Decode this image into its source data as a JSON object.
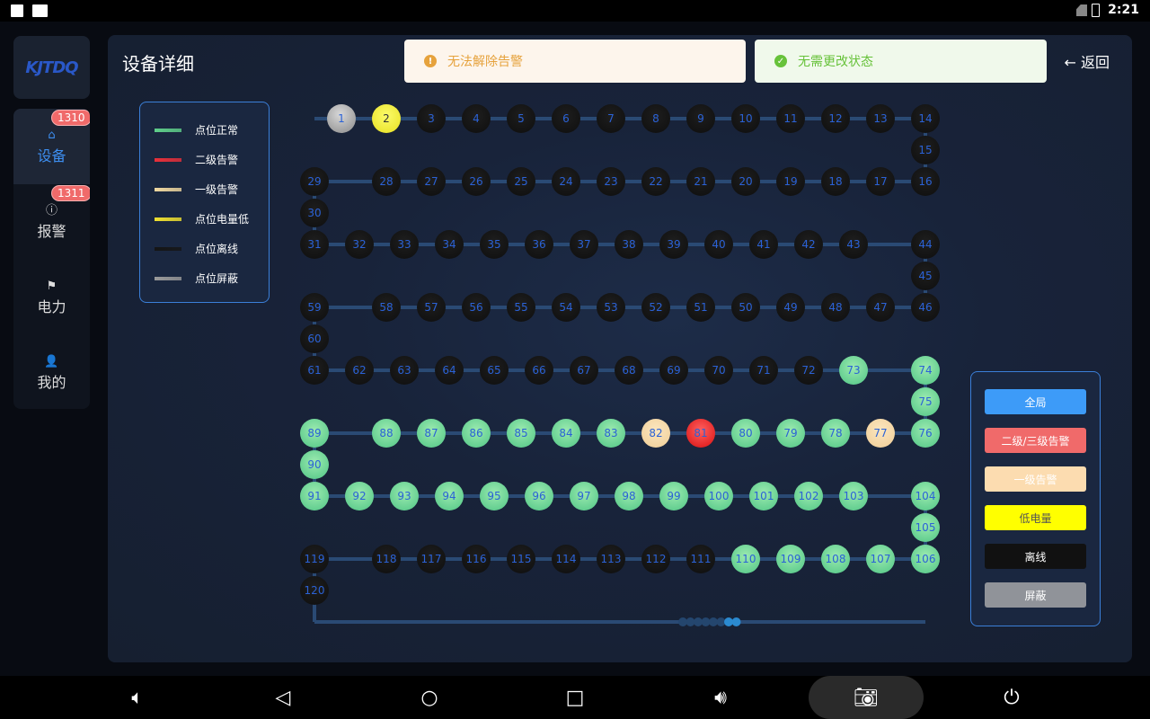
{
  "status_bar": {
    "time": "2:21"
  },
  "logo": {
    "text": "KJTDQ"
  },
  "sidebar": {
    "items": [
      {
        "label": "设备",
        "badge": "1310",
        "icon": "device-icon",
        "active": true
      },
      {
        "label": "报警",
        "badge": "1311",
        "icon": "alarm-icon"
      },
      {
        "label": "电力",
        "icon": "flag-icon"
      },
      {
        "label": "我的",
        "icon": "user-icon"
      }
    ]
  },
  "header": {
    "title": "设备详细",
    "back_label": "返回"
  },
  "legend": [
    {
      "label": "点位正常",
      "color": "#5fcf8a"
    },
    {
      "label": "二级告警",
      "color": "#e8303a"
    },
    {
      "label": "一级告警",
      "color": "#f0d8a0"
    },
    {
      "label": "点位电量低",
      "color": "#f0e030"
    },
    {
      "label": "点位离线",
      "color": "#151515"
    },
    {
      "label": "点位屏蔽",
      "color": "#9a9a9a"
    }
  ],
  "toasts": [
    {
      "type": "warning",
      "text": "无法解除告警",
      "bg": "#fdf5ec",
      "color": "#e6a23c"
    },
    {
      "type": "success",
      "text": "无需更改状态",
      "bg": "#f0f9eb",
      "color": "#67c23a"
    }
  ],
  "filters": [
    {
      "label": "全局",
      "bg": "#3d9bf8",
      "color": "#ffffff"
    },
    {
      "label": "二级/三级告警",
      "bg": "#f06a6a",
      "color": "#ffffff"
    },
    {
      "label": "一级告警",
      "bg": "#fcdcb0",
      "color": "#ffffff"
    },
    {
      "label": "低电量",
      "bg": "#ffff00",
      "color": "#555555"
    },
    {
      "label": "离线",
      "bg": "#111111",
      "color": "#ffffff"
    },
    {
      "label": "屏蔽",
      "bg": "#909399",
      "color": "#ffffff"
    }
  ],
  "nodes": {
    "shield": [
      1
    ],
    "low": [
      2
    ],
    "normal": [
      73,
      74,
      75,
      76,
      78,
      79,
      80,
      83,
      84,
      85,
      86,
      87,
      88,
      89,
      90,
      91,
      92,
      93,
      94,
      95,
      96,
      97,
      98,
      99,
      100,
      101,
      102,
      103,
      104,
      105,
      106,
      107,
      108,
      109,
      110
    ],
    "lv1": [
      77,
      82
    ],
    "lv2": [
      81
    ],
    "default": "offline",
    "count": 120
  },
  "navbar": [
    "volume-down-icon",
    "back-icon",
    "home-icon",
    "recents-icon",
    "volume-up-icon",
    "screenshot-icon",
    "power-icon"
  ]
}
